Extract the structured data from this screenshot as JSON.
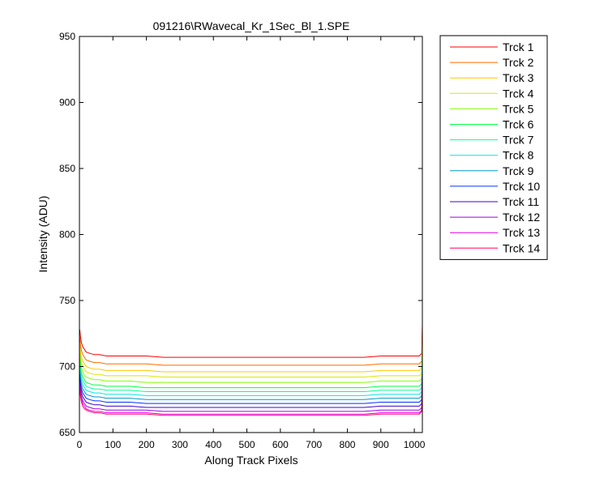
{
  "chart_data": {
    "type": "line",
    "title": "091216\\RWavecal_Kr_1Sec_Bl_1.SPE",
    "xlabel": "Along Track Pixels",
    "ylabel": "Intensity (ADU)",
    "xlim": [
      0,
      1024
    ],
    "ylim": [
      650,
      950
    ],
    "xticks": [
      0,
      100,
      200,
      300,
      400,
      500,
      600,
      700,
      800,
      900,
      1000
    ],
    "yticks": [
      650,
      700,
      750,
      800,
      850,
      900,
      950
    ],
    "grid": false,
    "legend_position": "outside-right",
    "x": [
      1,
      3,
      6,
      10,
      15,
      20,
      30,
      45,
      60,
      80,
      100,
      150,
      200,
      250,
      300,
      350,
      400,
      450,
      500,
      550,
      600,
      650,
      700,
      750,
      800,
      850,
      900,
      950,
      1000,
      1015,
      1022,
      1024
    ],
    "series": [
      {
        "name": "Trck 1",
        "color": "#ff0000",
        "values": [
          728,
          723,
          718,
          715,
          713,
          711,
          710,
          709,
          709,
          708,
          708,
          708,
          708,
          707,
          707,
          707,
          707,
          707,
          707,
          707,
          707,
          707,
          707,
          707,
          707,
          707,
          708,
          708,
          708,
          708,
          710,
          732
        ]
      },
      {
        "name": "Trck 2",
        "color": "#ff6a00",
        "values": [
          723,
          717,
          712,
          709,
          707,
          705,
          704,
          703,
          703,
          702,
          702,
          702,
          702,
          701,
          701,
          701,
          701,
          701,
          701,
          701,
          701,
          701,
          701,
          701,
          701,
          701,
          702,
          702,
          702,
          702,
          704,
          726
        ]
      },
      {
        "name": "Trck 3",
        "color": "#ffc800",
        "values": [
          718,
          712,
          707,
          704,
          702,
          700,
          699,
          698,
          698,
          697,
          697,
          697,
          697,
          696,
          696,
          696,
          696,
          696,
          696,
          696,
          696,
          696,
          696,
          696,
          696,
          696,
          697,
          697,
          697,
          697,
          699,
          720
        ]
      },
      {
        "name": "Trck 4",
        "color": "#d7e800",
        "values": [
          714,
          708,
          703,
          700,
          698,
          696,
          695,
          694,
          694,
          693,
          693,
          693,
          693,
          692,
          692,
          692,
          692,
          692,
          692,
          692,
          692,
          692,
          692,
          692,
          692,
          692,
          693,
          693,
          693,
          693,
          695,
          715
        ]
      },
      {
        "name": "Trck 5",
        "color": "#80ff00",
        "values": [
          710,
          704,
          699,
          696,
          693,
          692,
          691,
          690,
          690,
          689,
          689,
          689,
          688,
          688,
          688,
          688,
          688,
          688,
          688,
          688,
          688,
          688,
          688,
          688,
          688,
          688,
          689,
          689,
          689,
          689,
          691,
          711
        ]
      },
      {
        "name": "Trck 6",
        "color": "#00ff40",
        "values": [
          706,
          700,
          695,
          692,
          690,
          688,
          687,
          686,
          686,
          685,
          685,
          685,
          684,
          684,
          684,
          684,
          684,
          684,
          684,
          684,
          684,
          684,
          684,
          684,
          684,
          684,
          685,
          685,
          685,
          685,
          687,
          707
        ]
      },
      {
        "name": "Trck 7",
        "color": "#00ff99",
        "values": [
          703,
          697,
          692,
          689,
          687,
          685,
          684,
          683,
          683,
          682,
          682,
          682,
          681,
          681,
          681,
          681,
          681,
          681,
          681,
          681,
          681,
          681,
          681,
          681,
          681,
          681,
          682,
          682,
          682,
          682,
          684,
          704
        ]
      },
      {
        "name": "Trck 8",
        "color": "#00e5e5",
        "values": [
          700,
          694,
          689,
          686,
          684,
          682,
          681,
          680,
          680,
          679,
          679,
          679,
          678,
          678,
          678,
          678,
          678,
          678,
          678,
          678,
          678,
          678,
          678,
          678,
          678,
          678,
          679,
          679,
          679,
          679,
          681,
          701
        ]
      },
      {
        "name": "Trck 9",
        "color": "#0099cc",
        "values": [
          697,
          691,
          686,
          683,
          681,
          679,
          678,
          677,
          677,
          676,
          676,
          676,
          675,
          675,
          675,
          675,
          675,
          675,
          675,
          675,
          675,
          675,
          675,
          675,
          675,
          675,
          676,
          676,
          676,
          676,
          678,
          698
        ]
      },
      {
        "name": "Trck 10",
        "color": "#0033ff",
        "values": [
          694,
          688,
          683,
          680,
          678,
          676,
          675,
          674,
          674,
          673,
          673,
          673,
          672,
          672,
          672,
          672,
          672,
          672,
          672,
          672,
          672,
          672,
          672,
          672,
          672,
          672,
          673,
          673,
          673,
          673,
          675,
          695
        ]
      },
      {
        "name": "Trck 11",
        "color": "#4000cc",
        "values": [
          691,
          685,
          680,
          677,
          675,
          673,
          672,
          671,
          671,
          670,
          670,
          670,
          669,
          669,
          669,
          669,
          669,
          669,
          669,
          669,
          669,
          669,
          669,
          669,
          669,
          669,
          670,
          670,
          670,
          670,
          672,
          692
        ]
      },
      {
        "name": "Trck 12",
        "color": "#a000e6",
        "values": [
          688,
          682,
          677,
          674,
          672,
          670,
          669,
          668,
          668,
          667,
          667,
          667,
          667,
          666,
          666,
          666,
          666,
          666,
          666,
          666,
          666,
          666,
          666,
          666,
          666,
          666,
          667,
          667,
          667,
          667,
          669,
          689
        ]
      },
      {
        "name": "Trck 13",
        "color": "#e600e6",
        "values": [
          686,
          680,
          675,
          672,
          670,
          668,
          667,
          666,
          666,
          665,
          665,
          665,
          665,
          664,
          664,
          664,
          664,
          664,
          664,
          664,
          664,
          664,
          664,
          664,
          664,
          664,
          665,
          665,
          665,
          665,
          667,
          687
        ]
      },
      {
        "name": "Trck 14",
        "color": "#ff0066",
        "values": [
          684,
          678,
          673,
          670,
          668,
          667,
          666,
          665,
          665,
          664,
          664,
          664,
          664,
          663,
          663,
          663,
          663,
          663,
          663,
          663,
          663,
          663,
          663,
          663,
          663,
          663,
          664,
          664,
          664,
          664,
          666,
          685
        ]
      }
    ]
  }
}
